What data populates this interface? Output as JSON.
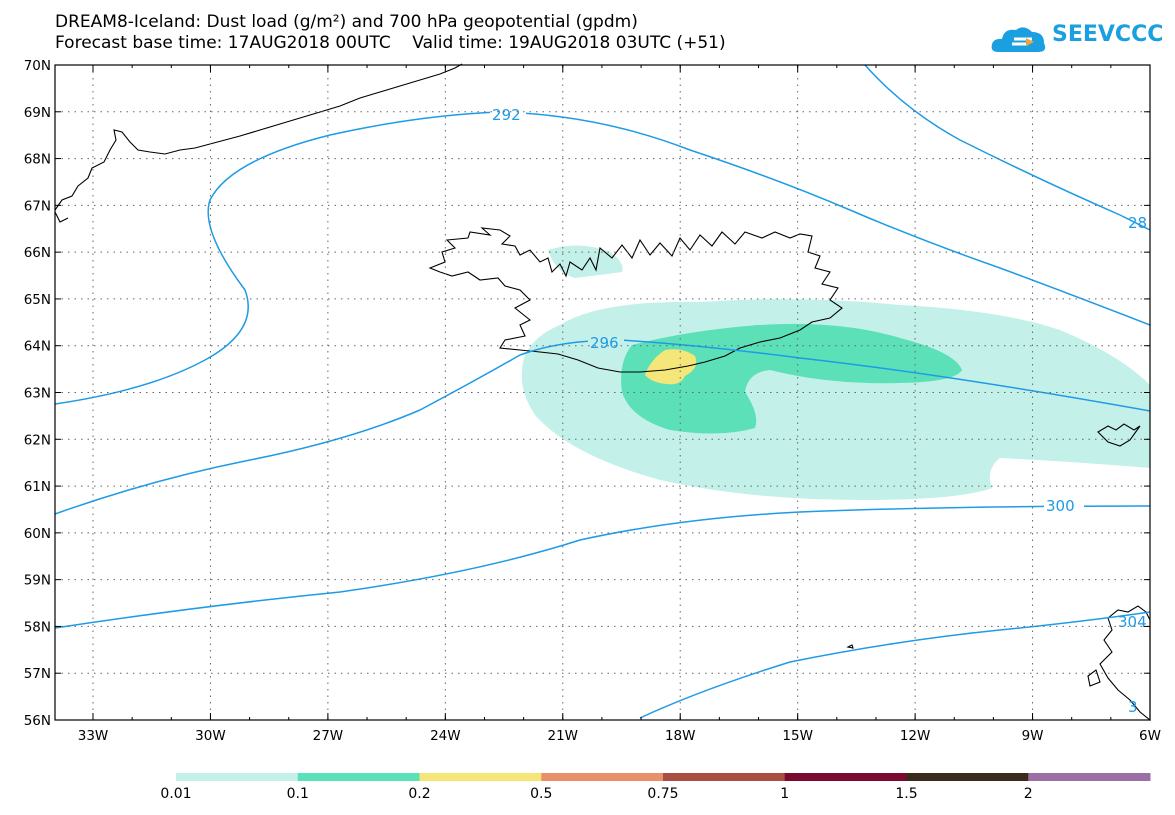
{
  "title": {
    "line1": "DREAM8-Iceland: Dust load (g/m²) and 700 hPa geopotential (gpdm)",
    "line2": "Forecast base time: 17AUG2018 00UTC    Valid time: 19AUG2018 03UTC (+51)"
  },
  "logo": {
    "text": "SEEVCCC",
    "color": "#1aa0e0"
  },
  "map": {
    "lat_labels": [
      "70N",
      "69N",
      "68N",
      "67N",
      "66N",
      "65N",
      "64N",
      "63N",
      "62N",
      "61N",
      "60N",
      "59N",
      "58N",
      "57N",
      "56N"
    ],
    "lon_labels": [
      "33W",
      "30W",
      "27W",
      "24W",
      "21W",
      "18W",
      "15W",
      "12W",
      "9W",
      "6W"
    ],
    "contour_color": "#1e9be6",
    "contour_labels": [
      "292",
      "296",
      "300",
      "28",
      "304",
      "3"
    ]
  },
  "colorbar": {
    "labels": [
      "0.01",
      "0.1",
      "0.2",
      "0.5",
      "0.75",
      "1",
      "1.5",
      "2"
    ],
    "colors": [
      "#c4f0ea",
      "#5ce0b8",
      "#f5e67a",
      "#e8906a",
      "#a84f43",
      "#7a0a2f",
      "#3a2a1e",
      "#9b6fa5"
    ]
  },
  "dust_colors": {
    "light": "#c4f0ea",
    "medium": "#5ce0b8",
    "high": "#f5e67a",
    "highest": "#e8906a"
  }
}
